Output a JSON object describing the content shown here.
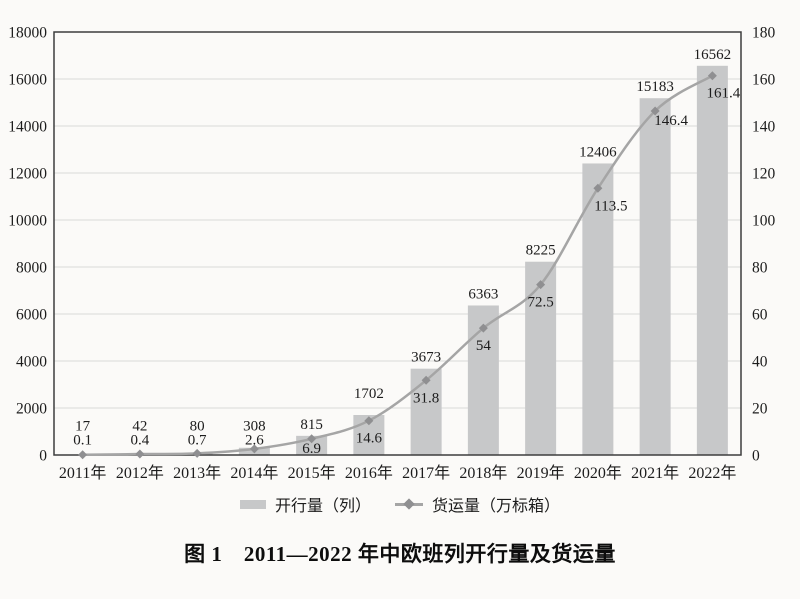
{
  "figure": {
    "caption": "图 1　2011—2022 年中欧班列开行量及货运量"
  },
  "chart_data": {
    "type": "bar",
    "subtype": "bar-line-combo",
    "title": "图 1　2011—2022 年中欧班列开行量及货运量",
    "categories": [
      "2011年",
      "2012年",
      "2013年",
      "2014年",
      "2015年",
      "2016年",
      "2017年",
      "2018年",
      "2019年",
      "2020年",
      "2021年",
      "2022年"
    ],
    "series": [
      {
        "name": "开行量（列）",
        "type": "bar",
        "axis": "left",
        "values": [
          17,
          42,
          80,
          308,
          815,
          1702,
          3673,
          6363,
          8225,
          12406,
          15183,
          16562
        ]
      },
      {
        "name": "货运量（万标箱）",
        "type": "line",
        "axis": "right",
        "values": [
          0.1,
          0.4,
          0.7,
          2.6,
          6.9,
          14.6,
          31.8,
          54,
          72.5,
          113.5,
          146.4,
          161.4
        ]
      }
    ],
    "left_axis": {
      "min": 0,
      "max": 18000,
      "step": 2000
    },
    "right_axis": {
      "min": 0,
      "max": 180,
      "step": 20
    },
    "grid": true,
    "data_labels": true,
    "legend_position": "bottom",
    "colors": {
      "bar": "#c7c8c9",
      "line": "#a5a5a5",
      "marker": "#8f8f91",
      "grid": "#d9d9d9",
      "axis": "#3d3d3d",
      "text": "#1c1c1c",
      "background": "#fbfaf8"
    },
    "layout_hints": {
      "stacked_below_value": 5,
      "bar_label_dy": [
        0,
        0,
        0,
        0,
        0,
        -10,
        0,
        0,
        0,
        0,
        0,
        0
      ],
      "line_label_dx": [
        0,
        0,
        0,
        0,
        0,
        0,
        0,
        0,
        0,
        13,
        16,
        11
      ],
      "line_label_dy": [
        0,
        0,
        0,
        0,
        0,
        0,
        0,
        0,
        0,
        0,
        -8,
        0
      ]
    }
  }
}
